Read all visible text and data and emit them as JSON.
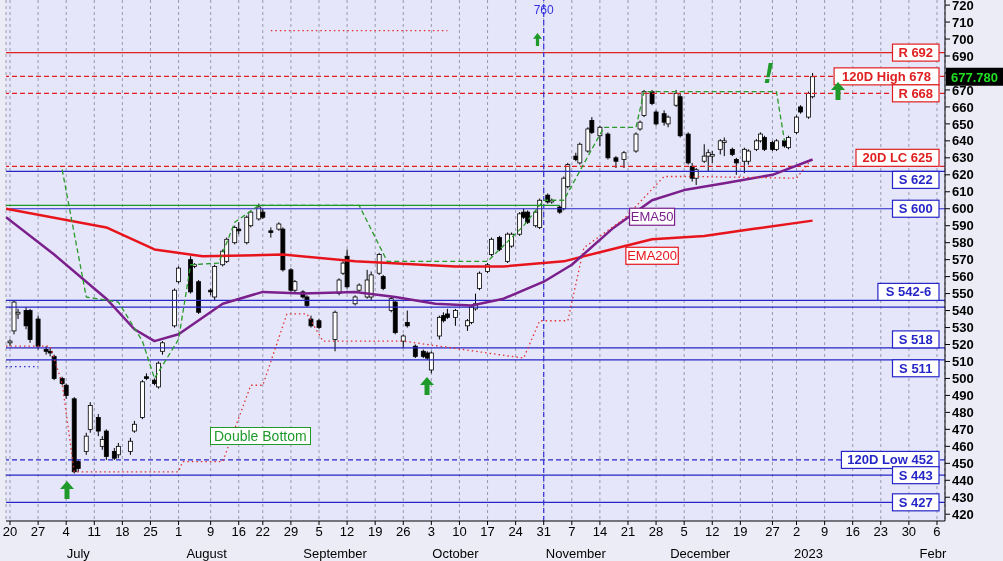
{
  "chart_data": {
    "type": "candlestick",
    "x": [
      "2022-06-20",
      "2022-06-21",
      "2022-06-22",
      "2022-06-24",
      "2022-06-25",
      "2022-06-27",
      "2022-06-29",
      "2022-06-30",
      "2022-07-01",
      "2022-07-03",
      "2022-07-04",
      "2022-07-06",
      "2022-07-07",
      "2022-07-09",
      "2022-07-10",
      "2022-07-12",
      "2022-07-13",
      "2022-07-14",
      "2022-07-16",
      "2022-07-17",
      "2022-07-20",
      "2022-07-21",
      "2022-07-23",
      "2022-07-24",
      "2022-07-26",
      "2022-07-27",
      "2022-07-28",
      "2022-07-31",
      "2022-08-01",
      "2022-08-04",
      "2022-08-05",
      "2022-08-06",
      "2022-08-09",
      "2022-08-10",
      "2022-08-12",
      "2022-08-13",
      "2022-08-15",
      "2022-08-16",
      "2022-08-18",
      "2022-08-19",
      "2022-08-21",
      "2022-08-22",
      "2022-08-24",
      "2022-08-26",
      "2022-08-27",
      "2022-08-29",
      "2022-08-30",
      "2022-09-01",
      "2022-09-02",
      "2022-09-03",
      "2022-09-05",
      "2022-09-09",
      "2022-09-10",
      "2022-09-11",
      "2022-09-12",
      "2022-09-14",
      "2022-09-15",
      "2022-09-17",
      "2022-09-18",
      "2022-09-20",
      "2022-09-21",
      "2022-09-23",
      "2022-09-24",
      "2022-09-26",
      "2022-09-27",
      "2022-09-29",
      "2022-10-01",
      "2022-10-02",
      "2022-10-03",
      "2022-10-05",
      "2022-10-06",
      "2022-10-07",
      "2022-10-09",
      "2022-10-12",
      "2022-10-13",
      "2022-10-14",
      "2022-10-15",
      "2022-10-17",
      "2022-10-18",
      "2022-10-20",
      "2022-10-22",
      "2022-10-23",
      "2022-10-25",
      "2022-10-26",
      "2022-10-27",
      "2022-10-29",
      "2022-10-30",
      "2022-11-01",
      "2022-11-02",
      "2022-11-04",
      "2022-11-05",
      "2022-11-06",
      "2022-11-08",
      "2022-11-09",
      "2022-11-11",
      "2022-11-12",
      "2022-11-14",
      "2022-11-16",
      "2022-11-18",
      "2022-11-20",
      "2022-11-23",
      "2022-11-24",
      "2022-11-25",
      "2022-11-27",
      "2022-11-28",
      "2022-11-30",
      "2022-12-01",
      "2022-12-03",
      "2022-12-04",
      "2022-12-06",
      "2022-12-07",
      "2022-12-08",
      "2022-12-10",
      "2022-12-11",
      "2022-12-12",
      "2022-12-14",
      "2022-12-15",
      "2022-12-17",
      "2022-12-18",
      "2022-12-20",
      "2022-12-21",
      "2022-12-23",
      "2022-12-24",
      "2022-12-25",
      "2022-12-27",
      "2022-12-28",
      "2022-12-30",
      "2022-12-31",
      "2023-01-02",
      "2023-01-03",
      "2023-01-05",
      "2023-01-06"
    ],
    "ohlc": [
      [
        521,
        523,
        519,
        522
      ],
      [
        528,
        546,
        526,
        545
      ],
      [
        538,
        541,
        535,
        539
      ],
      [
        540,
        542,
        529,
        531
      ],
      [
        540,
        541,
        521,
        523
      ],
      [
        535,
        537,
        517,
        519
      ],
      [
        517,
        519,
        514,
        516
      ],
      [
        516,
        518,
        513,
        515
      ],
      [
        513,
        514,
        499,
        500
      ],
      [
        500,
        501,
        496,
        497
      ],
      [
        496,
        497,
        488,
        490
      ],
      [
        488,
        489,
        444,
        445
      ],
      [
        451,
        452,
        445,
        447
      ],
      [
        457,
        468,
        455,
        466
      ],
      [
        470,
        486,
        468,
        484
      ],
      [
        477,
        479,
        466,
        469
      ],
      [
        460,
        466,
        458,
        464
      ],
      [
        469,
        470,
        452,
        454
      ],
      [
        457,
        459,
        452,
        453
      ],
      [
        455,
        462,
        453,
        460
      ],
      [
        457,
        465,
        455,
        463
      ],
      [
        469,
        475,
        468,
        473
      ],
      [
        477,
        499,
        476,
        498
      ],
      [
        501,
        503,
        499,
        500
      ],
      [
        499,
        500,
        496,
        497
      ],
      [
        495,
        510,
        494,
        509
      ],
      [
        516,
        522,
        514,
        521
      ],
      [
        531,
        553,
        530,
        552
      ],
      [
        557,
        566,
        556,
        565
      ],
      [
        570,
        572,
        550,
        551
      ],
      [
        566,
        568,
        565,
        567
      ],
      [
        557,
        558,
        538,
        539
      ],
      [
        552,
        553,
        549,
        551
      ],
      [
        548,
        567,
        546,
        566
      ],
      [
        567,
        576,
        566,
        575
      ],
      [
        569,
        583,
        568,
        582
      ],
      [
        580,
        590,
        579,
        589
      ],
      [
        588,
        592,
        585,
        587
      ],
      [
        580,
        596,
        579,
        595
      ],
      [
        590,
        599,
        589,
        598
      ],
      [
        594,
        603,
        593,
        601
      ],
      [
        598,
        600,
        594,
        595
      ],
      [
        587,
        589,
        583,
        586
      ],
      [
        588,
        592,
        587,
        591
      ],
      [
        588,
        589,
        563,
        564
      ],
      [
        564,
        565,
        551,
        552
      ],
      [
        552,
        558,
        550,
        557
      ],
      [
        551,
        552,
        547,
        548
      ],
      [
        548,
        549,
        542,
        543
      ],
      [
        535,
        537,
        530,
        531
      ],
      [
        534,
        535,
        529,
        530
      ],
      [
        523,
        540,
        516,
        539
      ],
      [
        550,
        559,
        549,
        558
      ],
      [
        562,
        569,
        561,
        568
      ],
      [
        572,
        576,
        553,
        554
      ],
      [
        544,
        549,
        543,
        548
      ],
      [
        552,
        556,
        551,
        555
      ],
      [
        548,
        564,
        547,
        558
      ],
      [
        548,
        563,
        546,
        561
      ],
      [
        562,
        574,
        561,
        573
      ],
      [
        560,
        561,
        552,
        553
      ],
      [
        540,
        548,
        539,
        547
      ],
      [
        545,
        546,
        526,
        527
      ],
      [
        522,
        526,
        518,
        525
      ],
      [
        533,
        540,
        530,
        531
      ],
      [
        519,
        520,
        512,
        513
      ],
      [
        516,
        517,
        512,
        513
      ],
      [
        515,
        516,
        511,
        512
      ],
      [
        505,
        516,
        503,
        515
      ],
      [
        525,
        537,
        523,
        536
      ],
      [
        537,
        539,
        533,
        534
      ],
      [
        538,
        541,
        535,
        536
      ],
      [
        536,
        541,
        531,
        540
      ],
      [
        531,
        535,
        528,
        534
      ],
      [
        533,
        543,
        532,
        542
      ],
      [
        541,
        550,
        540,
        544
      ],
      [
        553,
        563,
        552,
        562
      ],
      [
        563,
        568,
        562,
        567
      ],
      [
        573,
        583,
        572,
        582
      ],
      [
        583,
        584,
        575,
        576
      ],
      [
        569,
        586,
        568,
        585
      ],
      [
        578,
        586,
        577,
        585
      ],
      [
        585,
        598,
        584,
        597
      ],
      [
        598,
        600,
        594,
        595
      ],
      [
        598,
        599,
        591,
        592
      ],
      [
        590,
        599,
        589,
        598
      ],
      [
        589,
        606,
        588,
        605
      ],
      [
        608,
        609,
        603,
        604
      ],
      [
        604,
        606,
        603,
        605
      ],
      [
        601,
        602,
        597,
        598
      ],
      [
        600,
        619,
        599,
        618
      ],
      [
        613,
        627,
        612,
        626
      ],
      [
        631,
        633,
        628,
        629
      ],
      [
        627,
        639,
        626,
        638
      ],
      [
        634,
        648,
        633,
        647
      ],
      [
        652,
        654,
        644,
        645
      ],
      [
        643,
        649,
        637,
        648
      ],
      [
        644,
        645,
        629,
        630
      ],
      [
        630,
        631,
        624,
        628
      ],
      [
        629,
        634,
        624,
        633
      ],
      [
        634,
        645,
        633,
        644
      ],
      [
        647,
        652,
        646,
        651
      ],
      [
        655,
        670,
        654,
        669
      ],
      [
        669,
        670,
        661,
        662
      ],
      [
        657,
        658,
        649,
        650
      ],
      [
        656,
        658,
        649,
        651
      ],
      [
        650,
        655,
        648,
        654
      ],
      [
        661,
        670,
        660,
        668
      ],
      [
        666,
        668,
        642,
        643
      ],
      [
        644,
        645,
        626,
        627
      ],
      [
        625,
        627,
        616,
        618
      ],
      [
        618,
        624,
        614,
        623
      ],
      [
        628,
        638,
        627,
        631
      ],
      [
        631,
        635,
        622,
        633
      ],
      [
        631,
        634,
        627,
        632
      ],
      [
        635,
        641,
        632,
        640
      ],
      [
        639,
        642,
        631,
        640
      ],
      [
        635,
        636,
        631,
        632
      ],
      [
        629,
        630,
        620,
        627
      ],
      [
        628,
        636,
        621,
        635
      ],
      [
        628,
        635,
        626,
        634
      ],
      [
        635,
        641,
        634,
        640
      ],
      [
        640,
        645,
        639,
        644
      ],
      [
        642,
        643,
        634,
        635
      ],
      [
        639,
        640,
        634,
        635
      ],
      [
        635,
        641,
        634,
        640
      ],
      [
        640,
        641,
        636,
        637
      ],
      [
        636,
        643,
        635,
        642
      ],
      [
        645,
        655,
        644,
        654
      ],
      [
        660,
        661,
        656,
        657
      ],
      [
        654,
        669,
        653,
        668
      ],
      [
        666,
        680,
        665,
        677.78
      ]
    ],
    "series": [
      {
        "type": "line",
        "name": "EMA200",
        "color": "#e8141c",
        "line_style": "solid",
        "x": [
          "2022-06-19",
          "2022-07-14",
          "2022-07-26",
          "2022-08-07",
          "2022-08-27",
          "2022-09-14",
          "2022-10-09",
          "2022-10-21",
          "2022-11-05",
          "2022-11-15",
          "2022-11-27",
          "2022-12-10",
          "2022-12-22",
          "2023-01-06"
        ],
        "values": [
          600,
          589,
          576,
          572,
          573,
          569,
          566,
          566,
          569,
          575,
          582,
          584,
          588,
          593
        ]
      },
      {
        "type": "line",
        "name": "EMA50",
        "color": "#7b1f8c",
        "line_style": "solid",
        "x": [
          "2022-06-19",
          "2022-07-01",
          "2022-07-14",
          "2022-07-21",
          "2022-07-26",
          "2022-08-01",
          "2022-08-12",
          "2022-08-22",
          "2022-09-01",
          "2022-09-14",
          "2022-09-24",
          "2022-10-04",
          "2022-10-13",
          "2022-10-21",
          "2022-10-31",
          "2022-11-07",
          "2022-11-17",
          "2022-11-27",
          "2022-12-05",
          "2022-12-15",
          "2022-12-27",
          "2023-01-06"
        ],
        "values": [
          595,
          573,
          547,
          529,
          522,
          526,
          544,
          551,
          550,
          551,
          548,
          544,
          543,
          547,
          557,
          567,
          588,
          605,
          611,
          615,
          620,
          629
        ]
      },
      {
        "type": "line",
        "color": "#2a9a2a",
        "line_style": "dashed",
        "x": [
          "2022-07-03",
          "2022-07-09",
          "2022-07-17",
          "2022-07-23",
          "2022-07-26",
          "2022-08-01",
          "2022-08-04",
          "2022-08-11",
          "2022-08-15",
          "2022-08-21",
          "2022-09-15",
          "2022-09-22",
          "2022-10-17",
          "2022-10-26",
          "2022-10-31",
          "2022-11-05",
          "2022-11-15",
          "2022-11-23",
          "2022-11-25",
          "2022-12-28",
          "2022-12-30"
        ],
        "values": [
          623,
          548,
          545,
          522,
          500,
          523,
          567,
          568,
          592,
          602,
          602,
          569,
          569,
          590,
          605,
          605,
          648,
          648,
          669,
          669,
          640
        ]
      },
      {
        "type": "line",
        "color": "#e03030",
        "line_style": "dotted",
        "x": [
          "2022-06-19",
          "2022-06-30",
          "2022-07-03",
          "2022-07-06",
          "2022-08-01",
          "2022-08-02",
          "2022-08-12",
          "2022-08-19",
          "2022-08-22",
          "2022-08-28",
          "2022-09-02",
          "2022-09-06",
          "2022-09-26",
          "2022-10-26",
          "2022-10-30",
          "2022-11-06",
          "2022-11-10",
          "2022-11-20",
          "2022-11-30",
          "2022-12-07",
          "2023-01-02",
          "2023-01-05"
        ],
        "values": [
          519,
          519,
          497,
          445,
          445,
          451,
          451,
          496,
          496,
          538,
          538,
          522,
          522,
          512,
          534,
          534,
          577,
          594,
          619,
          619,
          618,
          627
        ]
      },
      {
        "type": "line",
        "color": "#e03030",
        "line_style": "dotted",
        "x": [
          "2022-08-24",
          "2022-10-07"
        ],
        "values": [
          705,
          705
        ]
      },
      {
        "type": "line",
        "color": "#3030d0",
        "line_style": "dotted",
        "x": [
          "2022-06-19",
          "2022-06-27"
        ],
        "values": [
          507,
          507
        ]
      },
      {
        "type": "line",
        "color": "#1f9a2a",
        "line_style": "solid",
        "x": [
          "2022-06-19",
          "2022-11-04"
        ],
        "values": [
          602,
          602
        ]
      }
    ],
    "xlim": [
      "2022-06-19",
      "2023-02-08"
    ],
    "xticks": [
      {
        "value": "2022-06-20",
        "label": "20"
      },
      {
        "value": "2022-06-27",
        "label": "27"
      },
      {
        "value": "2022-07-04",
        "label": "4"
      },
      {
        "value": "2022-07-11",
        "label": "11"
      },
      {
        "value": "2022-07-18",
        "label": "18"
      },
      {
        "value": "2022-07-25",
        "label": "25"
      },
      {
        "value": "2022-08-01",
        "label": "1"
      },
      {
        "value": "2022-08-09",
        "label": "9"
      },
      {
        "value": "2022-08-16",
        "label": "16"
      },
      {
        "value": "2022-08-22",
        "label": "22"
      },
      {
        "value": "2022-08-29",
        "label": "29"
      },
      {
        "value": "2022-09-05",
        "label": "5"
      },
      {
        "value": "2022-09-12",
        "label": "12"
      },
      {
        "value": "2022-09-19",
        "label": "19"
      },
      {
        "value": "2022-09-26",
        "label": "26"
      },
      {
        "value": "2022-10-03",
        "label": "3"
      },
      {
        "value": "2022-10-10",
        "label": "10"
      },
      {
        "value": "2022-10-17",
        "label": "17"
      },
      {
        "value": "2022-10-24",
        "label": "24"
      },
      {
        "value": "2022-10-31",
        "label": "31"
      },
      {
        "value": "2022-11-07",
        "label": "7"
      },
      {
        "value": "2022-11-14",
        "label": "14"
      },
      {
        "value": "2022-11-21",
        "label": "21"
      },
      {
        "value": "2022-11-28",
        "label": "28"
      },
      {
        "value": "2022-12-05",
        "label": "5"
      },
      {
        "value": "2022-12-12",
        "label": "12"
      },
      {
        "value": "2022-12-19",
        "label": "19"
      },
      {
        "value": "2022-12-27",
        "label": "27"
      },
      {
        "value": "2023-01-02",
        "label": "2"
      },
      {
        "value": "2023-01-09",
        "label": "9"
      },
      {
        "value": "2023-01-16",
        "label": "16"
      },
      {
        "value": "2023-01-23",
        "label": "23"
      },
      {
        "value": "2023-01-30",
        "label": "30"
      },
      {
        "value": "2023-02-06",
        "label": "6"
      }
    ],
    "x2lim": [
      "2022-06-19",
      "2023-02-08"
    ],
    "x2ticks": [
      {
        "value": "2022-07-07",
        "label": "July"
      },
      {
        "value": "2022-08-08",
        "label": "August"
      },
      {
        "value": "2022-09-09",
        "label": "September"
      },
      {
        "value": "2022-10-09",
        "label": "October"
      },
      {
        "value": "2022-11-08",
        "label": "November"
      },
      {
        "value": "2022-12-09",
        "label": "December"
      },
      {
        "value": "2023-01-05",
        "label": "2023"
      },
      {
        "value": "2023-02-05",
        "label": "Febr"
      }
    ],
    "ylim": [
      416,
      723
    ],
    "yticks": [
      420,
      430,
      440,
      450,
      460,
      470,
      480,
      490,
      500,
      510,
      520,
      530,
      540,
      550,
      560,
      570,
      580,
      590,
      600,
      610,
      620,
      630,
      640,
      650,
      660,
      670,
      {
        "value": 680,
        "label": null
      },
      690,
      700,
      710,
      720
    ],
    "grid": "x",
    "ref_lines": [
      {
        "axis": "y",
        "value": 692,
        "label": "R 692",
        "color": "#e02020",
        "line_style": "solid"
      },
      {
        "axis": "y",
        "value": 678,
        "label": "120D High 678",
        "color": "#e02020",
        "line_style": "dashed"
      },
      {
        "axis": "y",
        "value": 668,
        "label": "R 668",
        "color": "#e02020",
        "line_style": "dashed"
      },
      {
        "axis": "y",
        "value": 625,
        "label": "20D LC 625",
        "color": "#e02020",
        "line_style": "dashed"
      },
      {
        "axis": "y",
        "value": 622,
        "label": "S 622",
        "color": "#2626c8",
        "line_style": "solid"
      },
      {
        "axis": "y",
        "value": 600,
        "label": "S 600",
        "color": "#2626c8",
        "line_style": "solid"
      },
      {
        "axis": "y",
        "value": 546,
        "label": "S 542-6",
        "color": "#2626c8",
        "line_style": "solid"
      },
      {
        "axis": "y",
        "value": 542,
        "label": null,
        "color": "#2626c8",
        "line_style": "solid"
      },
      {
        "axis": "y",
        "value": 518,
        "label": "S 518",
        "color": "#2626c8",
        "line_style": "solid"
      },
      {
        "axis": "y",
        "value": 511,
        "label": "S 511",
        "color": "#2626c8",
        "line_style": "solid"
      },
      {
        "axis": "y",
        "value": 452,
        "label": "120D Low 452",
        "color": "#2626c8",
        "line_style": "dashed"
      },
      {
        "axis": "y",
        "value": 443,
        "label": "S 443",
        "color": "#2626c8",
        "line_style": "solid"
      },
      {
        "axis": "y",
        "value": 427,
        "label": "S 427",
        "color": "#2626c8",
        "line_style": "solid"
      },
      {
        "axis": "x",
        "value": "2022-10-31",
        "label": "760",
        "color": "#3030e0",
        "line_style": "dashed"
      }
    ],
    "annotations": [
      "Double Bottom",
      {
        "text": "!",
        "x": "2022-12-26",
        "y": 680
      },
      "677.780"
    ]
  }
}
